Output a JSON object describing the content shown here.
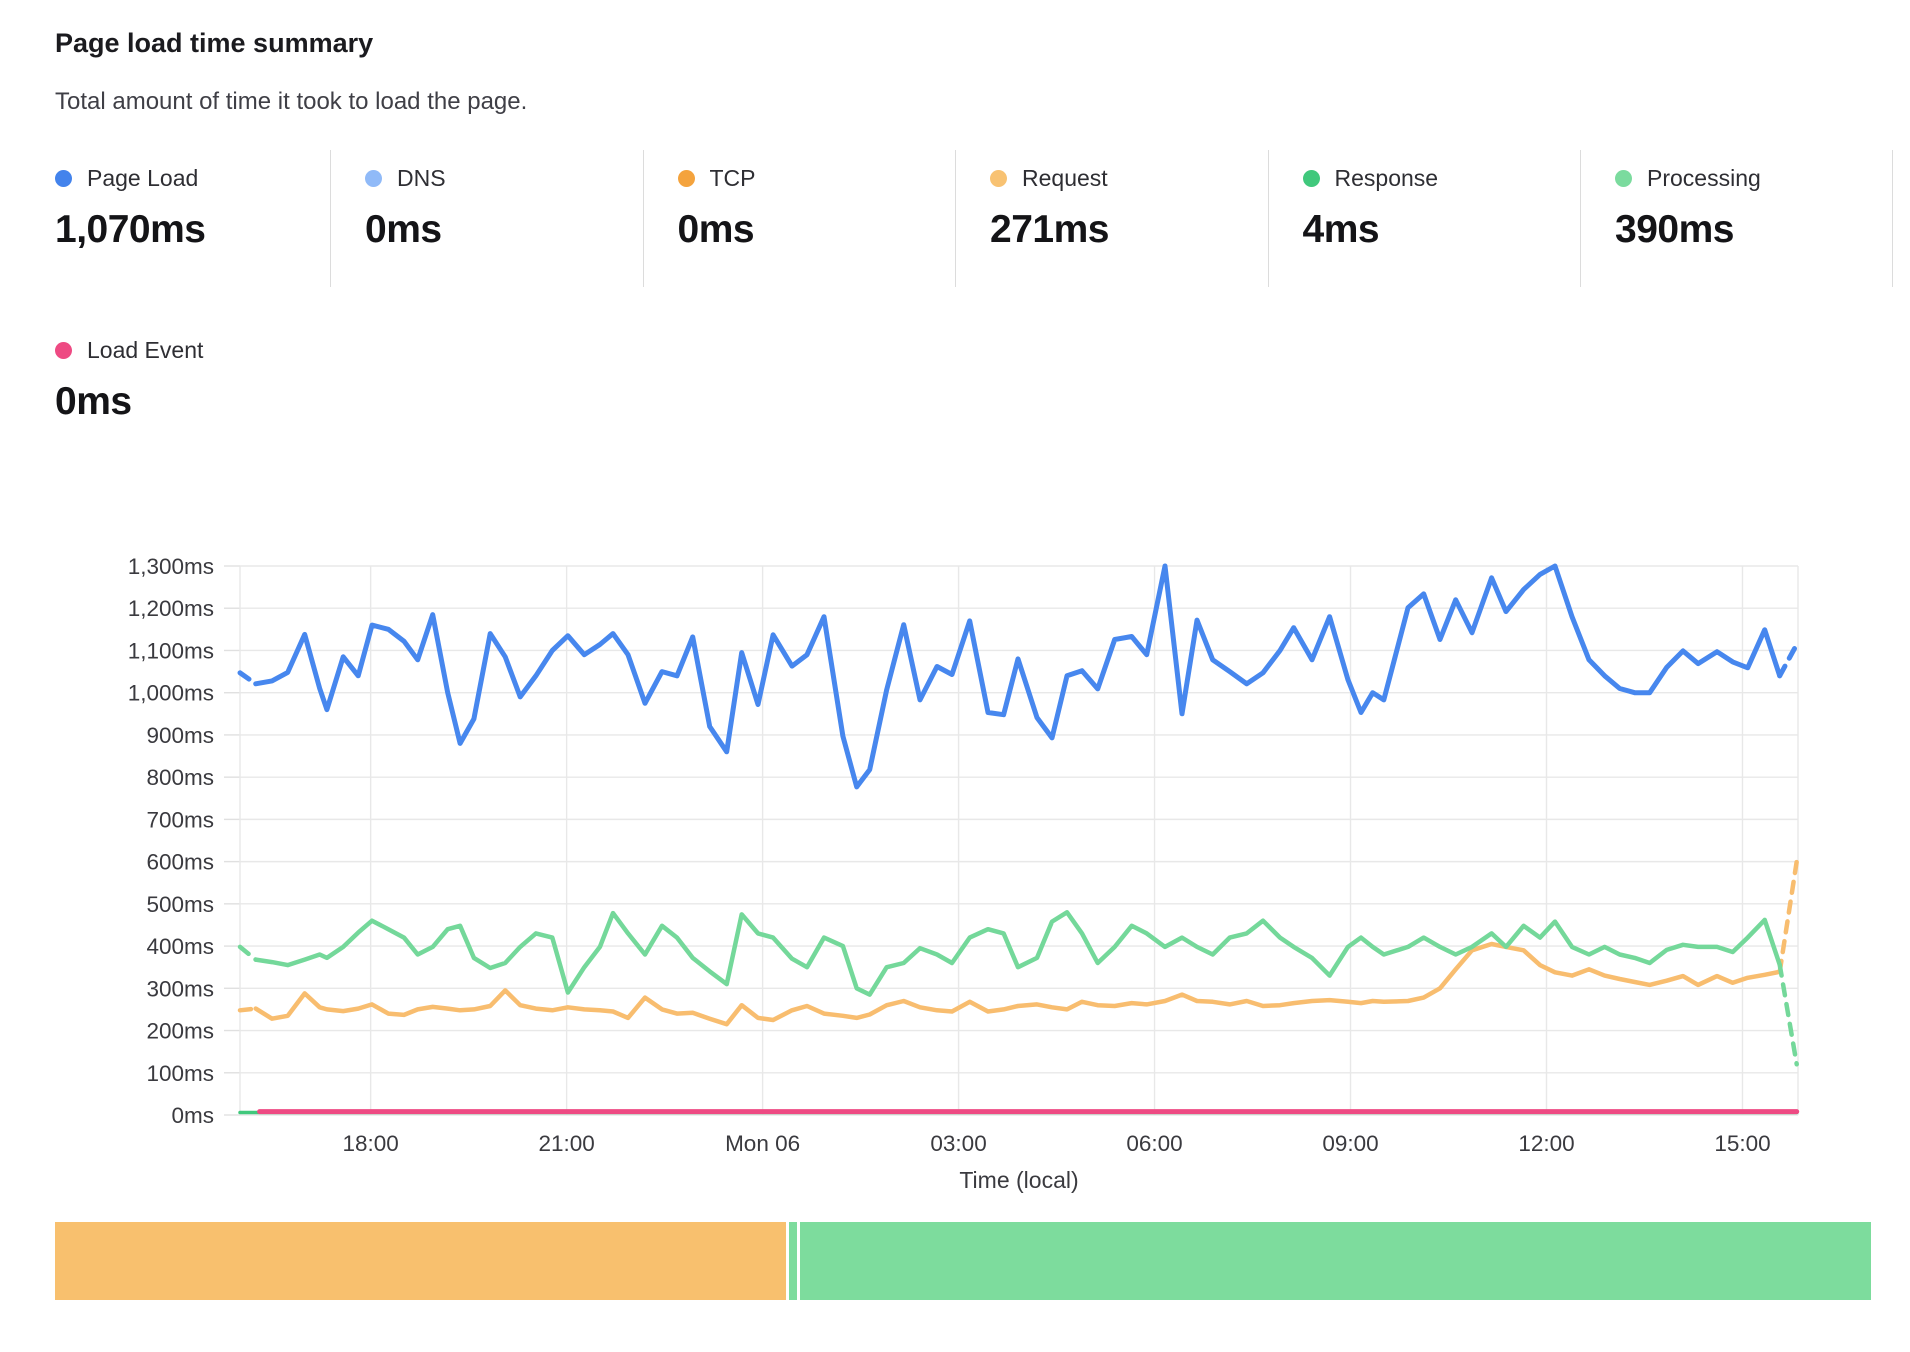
{
  "header": {
    "title": "Page load time summary",
    "subtitle": "Total amount of time it took to load the page."
  },
  "metrics": [
    {
      "label": "Page Load",
      "value": "1,070ms",
      "color": "#4383ec"
    },
    {
      "label": "DNS",
      "value": "0ms",
      "color": "#90baf8"
    },
    {
      "label": "TCP",
      "value": "0ms",
      "color": "#f4a33d"
    },
    {
      "label": "Request",
      "value": "271ms",
      "color": "#f8c272"
    },
    {
      "label": "Response",
      "value": "4ms",
      "color": "#40c87c"
    },
    {
      "label": "Processing",
      "value": "390ms",
      "color": "#7bdb9e"
    }
  ],
  "metrics_row2": [
    {
      "label": "Load Event",
      "value": "0ms",
      "color": "#ee4a83"
    }
  ],
  "chart_data": {
    "type": "line",
    "unit": "ms",
    "title": "Page load time summary",
    "xlabel": "Time (local)",
    "ylabel": "",
    "grid": true,
    "legend_position": "top",
    "x_axis": {
      "label": "Time (local)",
      "unit": "hours relative to Mon 06 00:00",
      "range": [
        -8,
        15.85
      ],
      "ticks": [
        {
          "t": -6,
          "label": "18:00"
        },
        {
          "t": -3,
          "label": "21:00"
        },
        {
          "t": 0,
          "label": "Mon 06"
        },
        {
          "t": 3,
          "label": "03:00"
        },
        {
          "t": 6,
          "label": "06:00"
        },
        {
          "t": 9,
          "label": "09:00"
        },
        {
          "t": 12,
          "label": "12:00"
        },
        {
          "t": 15,
          "label": "15:00"
        }
      ]
    },
    "y_axis": {
      "min": 0,
      "max": 1300,
      "tick_step": 100,
      "tick_suffix": "ms"
    },
    "shared_t": [
      -8,
      -7.76,
      -7.51,
      -7.27,
      -7.01,
      -6.78,
      -6.67,
      -6.42,
      -6.19,
      -5.98,
      -5.73,
      -5.49,
      -5.28,
      -5.05,
      -4.82,
      -4.63,
      -4.42,
      -4.17,
      -3.94,
      -3.71,
      -3.47,
      -3.22,
      -2.98,
      -2.73,
      -2.49,
      -2.29,
      -2.06,
      -1.8,
      -1.54,
      -1.31,
      -1.07,
      -0.81,
      -0.55,
      -0.32,
      -0.07,
      0.16,
      0.45,
      0.68,
      0.94,
      1.23,
      1.44,
      1.64,
      1.9,
      2.16,
      2.41,
      2.67,
      2.9,
      3.17,
      3.45,
      3.69,
      3.91,
      4.2,
      4.43,
      4.66,
      4.89,
      5.13,
      5.39,
      5.65,
      5.88,
      6.16,
      6.42,
      6.65,
      6.89,
      7.15,
      7.41,
      7.66,
      7.92,
      8.13,
      8.41,
      8.68,
      8.96,
      9.16,
      9.34,
      9.51,
      9.88,
      10.12,
      10.37,
      10.61,
      10.86,
      11.16,
      11.38,
      11.65,
      11.9,
      12.13,
      12.39,
      12.65,
      12.89,
      13.12,
      13.35,
      13.58,
      13.84,
      14.09,
      14.32,
      14.61,
      14.85,
      15.08,
      15.34,
      15.57,
      15.83
    ],
    "series": [
      {
        "name": "Request",
        "color": "#f8bd6f",
        "width": 4.5,
        "dash_head": 1,
        "dash_tail": 1,
        "v": [
          248,
          252,
          228,
          235,
          288,
          255,
          250,
          246,
          252,
          262,
          240,
          237,
          250,
          256,
          252,
          248,
          250,
          258,
          295,
          260,
          252,
          248,
          255,
          250,
          248,
          245,
          230,
          278,
          250,
          240,
          242,
          228,
          215,
          260,
          230,
          225,
          248,
          258,
          240,
          235,
          230,
          238,
          260,
          270,
          255,
          248,
          245,
          268,
          245,
          250,
          258,
          262,
          255,
          250,
          268,
          260,
          258,
          265,
          262,
          270,
          285,
          270,
          268,
          262,
          270,
          258,
          260,
          265,
          270,
          272,
          268,
          265,
          270,
          268,
          270,
          278,
          300,
          345,
          390,
          405,
          398,
          390,
          355,
          338,
          330,
          345,
          330,
          322,
          315,
          308,
          318,
          329,
          308,
          329,
          313,
          325,
          332,
          339,
          600
        ]
      },
      {
        "name": "Processing",
        "color": "#74d89a",
        "width": 4.5,
        "dash_head": 1,
        "dash_tail": 1,
        "v": [
          398,
          368,
          362,
          355,
          368,
          380,
          372,
          398,
          432,
          460,
          440,
          420,
          380,
          398,
          440,
          448,
          372,
          348,
          360,
          398,
          430,
          420,
          290,
          350,
          398,
          478,
          430,
          380,
          448,
          420,
          372,
          340,
          310,
          475,
          430,
          420,
          370,
          350,
          420,
          400,
          300,
          285,
          350,
          360,
          395,
          380,
          360,
          420,
          440,
          430,
          350,
          372,
          458,
          480,
          430,
          360,
          398,
          448,
          430,
          398,
          420,
          398,
          380,
          420,
          430,
          460,
          420,
          398,
          372,
          330,
          398,
          420,
          398,
          380,
          398,
          420,
          398,
          380,
          398,
          430,
          398,
          448,
          420,
          458,
          398,
          380,
          398,
          380,
          372,
          360,
          391,
          403,
          398,
          398,
          386,
          420,
          462,
          356,
          120
        ]
      },
      {
        "name": "Response",
        "color": "#40c87c",
        "width": 3.5,
        "dash_head": 0,
        "dash_tail": 0,
        "t": [
          -8,
          15.83
        ],
        "v": [
          6,
          6
        ]
      },
      {
        "name": "Load Event",
        "color": "#ee4a83",
        "width": 5,
        "dash_head": 0,
        "dash_tail": 0,
        "t": [
          -7.7,
          15.83
        ],
        "v": [
          8,
          8
        ]
      },
      {
        "name": "Page Load",
        "color": "#4787ee",
        "width": 5,
        "dash_head": 1,
        "dash_tail": 1,
        "v": [
          1047,
          1021,
          1028,
          1048,
          1138,
          1010,
          960,
          1085,
          1040,
          1160,
          1150,
          1122,
          1078,
          1185,
          1000,
          880,
          938,
          1140,
          1085,
          990,
          1040,
          1100,
          1135,
          1090,
          1114,
          1140,
          1090,
          975,
          1050,
          1040,
          1132,
          920,
          860,
          1095,
          972,
          1137,
          1063,
          1090,
          1180,
          897,
          777,
          818,
          1007,
          1161,
          983,
          1062,
          1043,
          1170,
          953,
          948,
          1080,
          941,
          893,
          1040,
          1052,
          1009,
          1126,
          1133,
          1090,
          1300,
          950,
          1172,
          1078,
          1050,
          1021,
          1047,
          1100,
          1154,
          1078,
          1180,
          1031,
          953,
          1000,
          983,
          1201,
          1234,
          1126,
          1220,
          1142,
          1272,
          1192,
          1244,
          1280,
          1300,
          1180,
          1078,
          1040,
          1010,
          1000,
          1000,
          1060,
          1099,
          1069,
          1097,
          1073,
          1059,
          1149,
          1040,
          1114
        ]
      }
    ]
  },
  "brush": {
    "segments": [
      {
        "name": "request-segment",
        "color": "#f8c06e",
        "width_pct": 40.25
      },
      {
        "name": "gap",
        "color": "#ffffff",
        "width_pct": 0.17
      },
      {
        "name": "processing-sliver",
        "color": "#7ddc9d",
        "width_pct": 0.45
      },
      {
        "name": "gap",
        "color": "#ffffff",
        "width_pct": 0.17
      },
      {
        "name": "processing-segment",
        "color": "#7ddc9d",
        "width_pct": 58.96
      }
    ]
  }
}
